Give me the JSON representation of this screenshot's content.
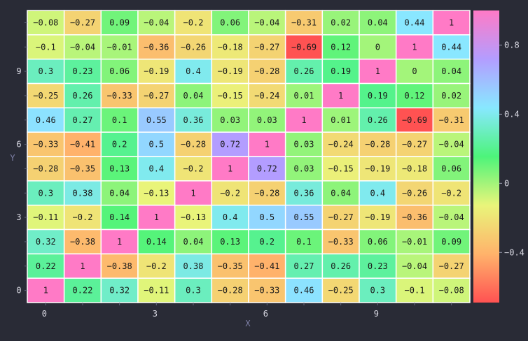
{
  "chart_data": {
    "type": "heatmap",
    "title": "",
    "xlabel": "X",
    "ylabel": "Y",
    "x_ticks": [
      "0",
      "3",
      "6",
      "9"
    ],
    "x_tick_positions": [
      0,
      3,
      6,
      9
    ],
    "y_ticks": [
      "0",
      "3",
      "6",
      "9"
    ],
    "y_tick_positions": [
      0,
      3,
      6,
      9
    ],
    "colorbar_ticks": [
      "0.8",
      "0.4",
      "0",
      "−0.4"
    ],
    "colorbar_tick_values": [
      0.8,
      0.4,
      0,
      -0.4
    ],
    "value_range": [
      -0.69,
      1
    ],
    "colorscale": [
      "#ff5252",
      "#ffb36b",
      "#e9f57a",
      "#4df47a",
      "#88e8ff",
      "#b39dff",
      "#ff7ac6"
    ],
    "rows_top_to_bottom": [
      [
        "−0.08",
        "−0.27",
        "0.09",
        "−0.04",
        "−0.2",
        "0.06",
        "−0.04",
        "−0.31",
        "0.02",
        "0.04",
        "0.44",
        "1"
      ],
      [
        "−0.1",
        "−0.04",
        "−0.01",
        "−0.36",
        "−0.26",
        "−0.18",
        "−0.27",
        "−0.69",
        "0.12",
        "0",
        "1",
        "0.44"
      ],
      [
        "0.3",
        "0.23",
        "0.06",
        "−0.19",
        "0.4",
        "−0.19",
        "−0.28",
        "0.26",
        "0.19",
        "1",
        "0",
        "0.04"
      ],
      [
        "−0.25",
        "0.26",
        "−0.33",
        "−0.27",
        "0.04",
        "−0.15",
        "−0.24",
        "0.01",
        "1",
        "0.19",
        "0.12",
        "0.02"
      ],
      [
        "0.46",
        "0.27",
        "0.1",
        "0.55",
        "0.36",
        "0.03",
        "0.03",
        "1",
        "0.01",
        "0.26",
        "−0.69",
        "−0.31"
      ],
      [
        "−0.33",
        "−0.41",
        "0.2",
        "0.5",
        "−0.28",
        "0.72",
        "1",
        "0.03",
        "−0.24",
        "−0.28",
        "−0.27",
        "−0.04"
      ],
      [
        "−0.28",
        "−0.35",
        "0.13",
        "0.4",
        "−0.2",
        "1",
        "0.72",
        "0.03",
        "−0.15",
        "−0.19",
        "−0.18",
        "0.06"
      ],
      [
        "0.3",
        "0.38",
        "0.04",
        "−0.13",
        "1",
        "−0.2",
        "−0.28",
        "0.36",
        "0.04",
        "0.4",
        "−0.26",
        "−0.2"
      ],
      [
        "−0.11",
        "−0.2",
        "0.14",
        "1",
        "−0.13",
        "0.4",
        "0.5",
        "0.55",
        "−0.27",
        "−0.19",
        "−0.36",
        "−0.04"
      ],
      [
        "0.32",
        "−0.38",
        "1",
        "0.14",
        "0.04",
        "0.13",
        "0.2",
        "0.1",
        "−0.33",
        "0.06",
        "−0.01",
        "0.09"
      ],
      [
        "0.22",
        "1",
        "−0.38",
        "−0.2",
        "0.38",
        "−0.35",
        "−0.41",
        "0.27",
        "0.26",
        "0.23",
        "−0.04",
        "−0.27"
      ],
      [
        "1",
        "0.22",
        "0.32",
        "−0.11",
        "0.3",
        "−0.28",
        "−0.33",
        "0.46",
        "−0.25",
        "0.3",
        "−0.1",
        "−0.08"
      ]
    ]
  }
}
